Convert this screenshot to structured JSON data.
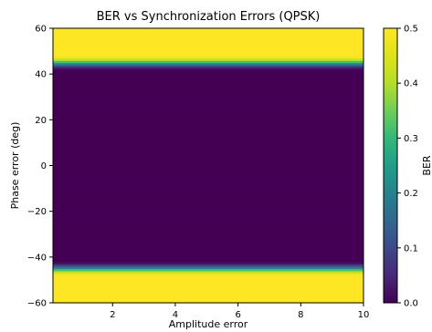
{
  "chart_data": {
    "type": "heatmap",
    "title": "BER vs Synchronization Errors (QPSK)",
    "xlabel": "Amplitude error",
    "ylabel": "Phase error (deg)",
    "xlim": [
      0.1,
      10
    ],
    "ylim": [
      -60,
      60
    ],
    "x_ticks": [
      2,
      4,
      6,
      8,
      10
    ],
    "y_ticks": [
      -60,
      -40,
      -20,
      0,
      20,
      40,
      60
    ],
    "colorbar": {
      "label": "BER",
      "range": [
        0.0,
        0.5
      ],
      "ticks": [
        0.0,
        0.1,
        0.2,
        0.3,
        0.4,
        0.5
      ],
      "colormap": "viridis"
    },
    "ber_vs_phase_error": [
      {
        "phase_deg": -60,
        "ber": 0.5
      },
      {
        "phase_deg": -48,
        "ber": 0.5
      },
      {
        "phase_deg": -47,
        "ber": 0.47
      },
      {
        "phase_deg": -46,
        "ber": 0.38
      },
      {
        "phase_deg": -45,
        "ber": 0.26
      },
      {
        "phase_deg": -44,
        "ber": 0.14
      },
      {
        "phase_deg": -43,
        "ber": 0.04
      },
      {
        "phase_deg": -42,
        "ber": 0.0
      },
      {
        "phase_deg": 42,
        "ber": 0.0
      },
      {
        "phase_deg": 43,
        "ber": 0.04
      },
      {
        "phase_deg": 44,
        "ber": 0.14
      },
      {
        "phase_deg": 45,
        "ber": 0.26
      },
      {
        "phase_deg": 46,
        "ber": 0.38
      },
      {
        "phase_deg": 47,
        "ber": 0.47
      },
      {
        "phase_deg": 48,
        "ber": 0.5
      },
      {
        "phase_deg": 60,
        "ber": 0.5
      }
    ],
    "ber_constant_along_amplitude": true,
    "grid": false
  }
}
